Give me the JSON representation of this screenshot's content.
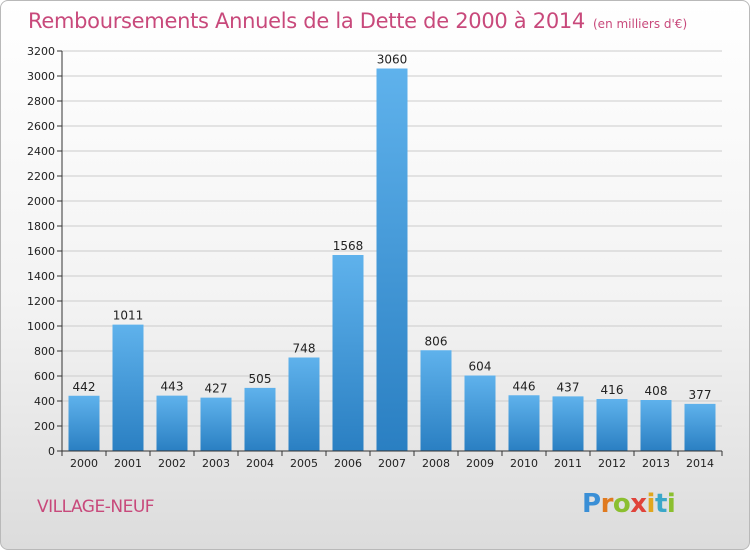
{
  "title": "Remboursements Annuels de la Dette de 2000 à 2014",
  "subtitle": "(en milliers d'€)",
  "location": "VILLAGE-NEUF",
  "brand": {
    "letters": [
      "P",
      "r",
      "o",
      "x",
      "i",
      "t",
      "i"
    ],
    "colors": [
      "#3a8fd6",
      "#e07a1f",
      "#8bbf2f",
      "#e0433a",
      "#e0a71f",
      "#3aa7c9",
      "#8bbf2f"
    ]
  },
  "colors": {
    "title": "#c8497b",
    "bar_top": "#5fb2ec",
    "bar_bottom": "#2a7fc2",
    "gridline": "#cccccc",
    "axis": "#333333"
  },
  "chart_data": {
    "type": "bar",
    "categories": [
      "2000",
      "2001",
      "2002",
      "2003",
      "2004",
      "2005",
      "2006",
      "2007",
      "2008",
      "2009",
      "2010",
      "2011",
      "2012",
      "2013",
      "2014"
    ],
    "values": [
      442,
      1011,
      443,
      427,
      505,
      748,
      1568,
      3060,
      806,
      604,
      446,
      437,
      416,
      408,
      377
    ],
    "value_labels": [
      "442",
      "1011",
      "443",
      "427",
      "505",
      "748",
      "1568",
      "3060",
      "806",
      "604",
      "446",
      "437",
      "416",
      "408",
      "377"
    ],
    "y_ticks": [
      "0",
      "200",
      "400",
      "600",
      "800",
      "1000",
      "1200",
      "1400",
      "1600",
      "1800",
      "2000",
      "2200",
      "2400",
      "2600",
      "2800",
      "3000",
      "3200"
    ],
    "ylim": [
      0,
      3200
    ],
    "grid": true,
    "legend": "none"
  }
}
